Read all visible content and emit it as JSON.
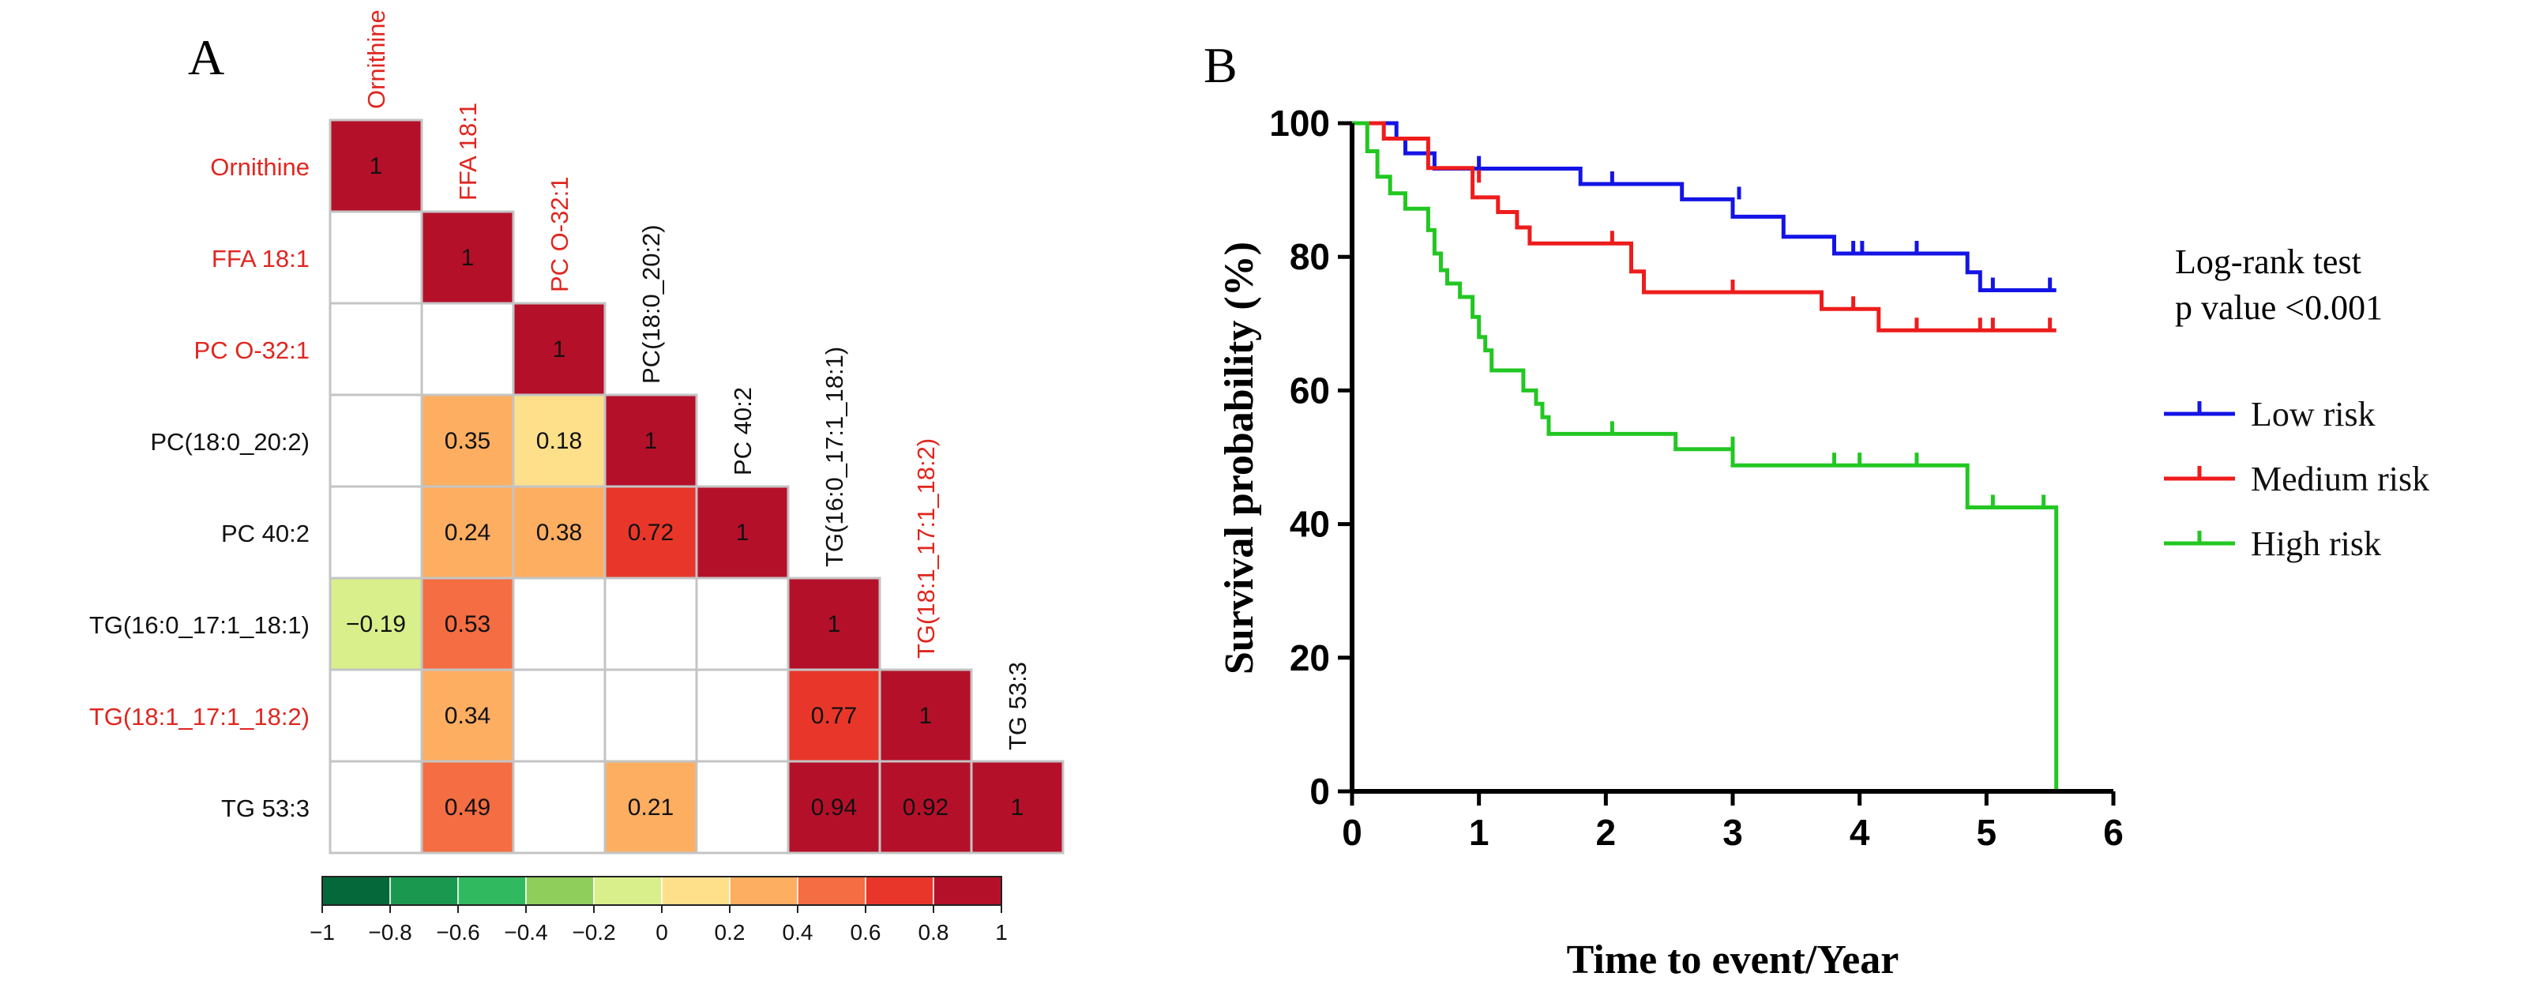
{
  "panel_a": {
    "letter": "A",
    "labels": [
      "Ornithine",
      "FFA 18:1",
      "PC O-32:1",
      "PC(18:0_20:2)",
      "PC 40:2",
      "TG(16:0_17:1_18:1)",
      "TG(18:1_17:1_18:2)",
      "TG 53:3"
    ],
    "label_colors": [
      "#e0261f",
      "#e0261f",
      "#e0261f",
      "#111111",
      "#111111",
      "#111111",
      "#e0261f",
      "#111111"
    ],
    "colorbar": {
      "ticks": [
        "−1",
        "−0.8",
        "−0.6",
        "−0.4",
        "−0.2",
        "0",
        "0.2",
        "0.4",
        "0.6",
        "0.8",
        "1"
      ],
      "colors": [
        "#05683a",
        "#1a9850",
        "#31b95f",
        "#8fce5b",
        "#d9ef8b",
        "#fee08b",
        "#fdae61",
        "#f46d43",
        "#e8372a",
        "#b5102a"
      ]
    }
  },
  "panel_b": {
    "letter": "B",
    "annotation_line1": "Log-rank test",
    "annotation_line2": "p value <0.001"
  },
  "chart_data": [
    {
      "type": "heatmap",
      "title": "",
      "row_labels": [
        "Ornithine",
        "FFA 18:1",
        "PC O-32:1",
        "PC(18:0_20:2)",
        "PC 40:2",
        "TG(16:0_17:1_18:1)",
        "TG(18:1_17:1_18:2)",
        "TG 53:3"
      ],
      "col_labels": [
        "Ornithine",
        "FFA 18:1",
        "PC O-32:1",
        "PC(18:0_20:2)",
        "PC 40:2",
        "TG(16:0_17:1_18:1)",
        "TG(18:1_17:1_18:2)",
        "TG 53:3"
      ],
      "value_range": [
        -1,
        1
      ],
      "cells": [
        {
          "r": 0,
          "c": 0,
          "v": 1,
          "label": "1"
        },
        {
          "r": 1,
          "c": 1,
          "v": 1,
          "label": "1"
        },
        {
          "r": 2,
          "c": 2,
          "v": 1,
          "label": "1"
        },
        {
          "r": 3,
          "c": 1,
          "v": 0.35,
          "label": "0.35"
        },
        {
          "r": 3,
          "c": 2,
          "v": 0.18,
          "label": "0.18"
        },
        {
          "r": 3,
          "c": 3,
          "v": 1,
          "label": "1"
        },
        {
          "r": 4,
          "c": 1,
          "v": 0.24,
          "label": "0.24"
        },
        {
          "r": 4,
          "c": 2,
          "v": 0.38,
          "label": "0.38"
        },
        {
          "r": 4,
          "c": 3,
          "v": 0.72,
          "label": "0.72"
        },
        {
          "r": 4,
          "c": 4,
          "v": 1,
          "label": "1"
        },
        {
          "r": 5,
          "c": 0,
          "v": -0.19,
          "label": "−0.19"
        },
        {
          "r": 5,
          "c": 1,
          "v": 0.53,
          "label": "0.53"
        },
        {
          "r": 5,
          "c": 5,
          "v": 1,
          "label": "1"
        },
        {
          "r": 6,
          "c": 1,
          "v": 0.34,
          "label": "0.34"
        },
        {
          "r": 6,
          "c": 5,
          "v": 0.77,
          "label": "0.77"
        },
        {
          "r": 6,
          "c": 6,
          "v": 1,
          "label": "1"
        },
        {
          "r": 7,
          "c": 1,
          "v": 0.49,
          "label": "0.49"
        },
        {
          "r": 7,
          "c": 3,
          "v": 0.21,
          "label": "0.21"
        },
        {
          "r": 7,
          "c": 5,
          "v": 0.94,
          "label": "0.94"
        },
        {
          "r": 7,
          "c": 6,
          "v": 0.92,
          "label": "0.92"
        },
        {
          "r": 7,
          "c": 7,
          "v": 1,
          "label": "1"
        }
      ]
    },
    {
      "type": "line",
      "subtype": "kaplan-meier step",
      "title": "",
      "xlabel": "Time to event/Year",
      "ylabel": "Survival probability (%)",
      "xlim": [
        0,
        6
      ],
      "ylim": [
        0,
        100
      ],
      "xticks": [
        0,
        1,
        2,
        3,
        4,
        5,
        6
      ],
      "yticks": [
        0,
        20,
        40,
        60,
        80,
        100
      ],
      "legend_position": "right",
      "series": [
        {
          "name": "Low risk",
          "color": "#1414e6",
          "steps": [
            [
              0,
              100
            ],
            [
              0.35,
              100
            ],
            [
              0.35,
              97.7
            ],
            [
              0.42,
              97.7
            ],
            [
              0.42,
              95.5
            ],
            [
              0.65,
              95.5
            ],
            [
              0.65,
              93.2
            ],
            [
              1.8,
              93.2
            ],
            [
              1.8,
              90.9
            ],
            [
              2.6,
              90.9
            ],
            [
              2.6,
              88.6
            ],
            [
              3.0,
              88.6
            ],
            [
              3.0,
              86.0
            ],
            [
              3.4,
              86.0
            ],
            [
              3.4,
              83.0
            ],
            [
              3.8,
              83.0
            ],
            [
              3.8,
              80.5
            ],
            [
              4.85,
              80.5
            ],
            [
              4.85,
              77.7
            ],
            [
              4.95,
              77.7
            ],
            [
              4.95,
              75.0
            ],
            [
              5.55,
              75.0
            ]
          ],
          "censored": [
            [
              1.0,
              93.2
            ],
            [
              2.05,
              90.9
            ],
            [
              3.05,
              88.6
            ],
            [
              3.95,
              80.5
            ],
            [
              4.02,
              80.5
            ],
            [
              4.45,
              80.5
            ],
            [
              5.05,
              75.0
            ],
            [
              5.5,
              75.0
            ]
          ]
        },
        {
          "name": "Medium risk",
          "color": "#ee1c1c",
          "steps": [
            [
              0,
              100
            ],
            [
              0.25,
              100
            ],
            [
              0.25,
              97.7
            ],
            [
              0.6,
              97.7
            ],
            [
              0.6,
              93.3
            ],
            [
              0.95,
              93.3
            ],
            [
              0.95,
              88.9
            ],
            [
              1.15,
              88.9
            ],
            [
              1.15,
              86.7
            ],
            [
              1.3,
              86.7
            ],
            [
              1.3,
              84.4
            ],
            [
              1.4,
              84.4
            ],
            [
              1.4,
              82.0
            ],
            [
              2.2,
              82.0
            ],
            [
              2.2,
              77.8
            ],
            [
              2.3,
              77.8
            ],
            [
              2.3,
              74.7
            ],
            [
              3.7,
              74.7
            ],
            [
              3.7,
              72.2
            ],
            [
              4.15,
              72.2
            ],
            [
              4.15,
              69.0
            ],
            [
              5.55,
              69.0
            ]
          ],
          "censored": [
            [
              1.0,
              91.1
            ],
            [
              2.05,
              82.0
            ],
            [
              3.0,
              74.7
            ],
            [
              3.95,
              72.2
            ],
            [
              4.45,
              69.0
            ],
            [
              4.95,
              69.0
            ],
            [
              5.05,
              69.0
            ],
            [
              5.5,
              69.0
            ]
          ]
        },
        {
          "name": "High risk",
          "color": "#22c722",
          "steps": [
            [
              0,
              100
            ],
            [
              0.12,
              100
            ],
            [
              0.12,
              95.8
            ],
            [
              0.2,
              95.8
            ],
            [
              0.2,
              92.0
            ],
            [
              0.3,
              92.0
            ],
            [
              0.3,
              89.5
            ],
            [
              0.42,
              89.5
            ],
            [
              0.42,
              87.2
            ],
            [
              0.6,
              87.2
            ],
            [
              0.6,
              84.0
            ],
            [
              0.65,
              84.0
            ],
            [
              0.65,
              80.5
            ],
            [
              0.7,
              80.5
            ],
            [
              0.7,
              78.0
            ],
            [
              0.75,
              78.0
            ],
            [
              0.75,
              76.0
            ],
            [
              0.85,
              76.0
            ],
            [
              0.85,
              74.0
            ],
            [
              0.95,
              74.0
            ],
            [
              0.95,
              71.0
            ],
            [
              1.0,
              71.0
            ],
            [
              1.0,
              68.0
            ],
            [
              1.05,
              68.0
            ],
            [
              1.05,
              66.0
            ],
            [
              1.1,
              66.0
            ],
            [
              1.1,
              63.0
            ],
            [
              1.35,
              63.0
            ],
            [
              1.35,
              60.0
            ],
            [
              1.45,
              60.0
            ],
            [
              1.45,
              58.0
            ],
            [
              1.5,
              58.0
            ],
            [
              1.5,
              56.0
            ],
            [
              1.55,
              56.0
            ],
            [
              1.55,
              53.5
            ],
            [
              2.55,
              53.5
            ],
            [
              2.55,
              51.2
            ],
            [
              3.0,
              51.2
            ],
            [
              3.0,
              48.8
            ],
            [
              4.85,
              48.8
            ],
            [
              4.85,
              42.5
            ],
            [
              5.55,
              42.5
            ],
            [
              5.55,
              0
            ]
          ],
          "censored": [
            [
              2.05,
              53.5
            ],
            [
              3.0,
              51.2
            ],
            [
              3.8,
              48.8
            ],
            [
              4.0,
              48.8
            ],
            [
              4.45,
              48.8
            ],
            [
              5.05,
              42.5
            ],
            [
              5.45,
              42.5
            ]
          ]
        }
      ]
    }
  ]
}
